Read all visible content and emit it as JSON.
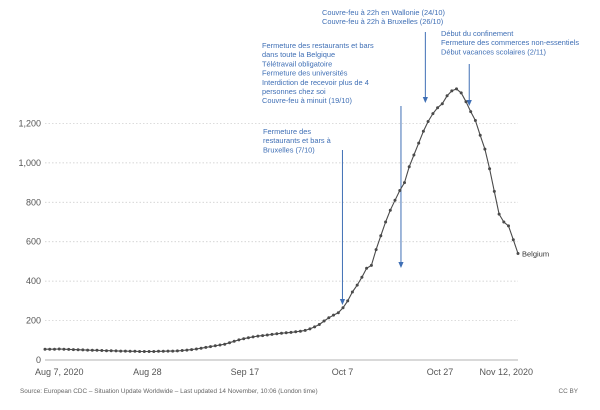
{
  "chart_data": {
    "type": "line",
    "series": [
      {
        "name": "Belgium",
        "color": "#4a4a4a",
        "start_date": "2020-08-07",
        "end_date": "2020-11-12",
        "values": [
          55,
          55,
          55,
          56,
          55,
          54,
          53,
          52,
          51,
          50,
          49,
          49,
          48,
          47,
          47,
          46,
          45,
          45,
          44,
          44,
          43,
          43,
          43,
          43,
          44,
          44,
          45,
          45,
          46,
          48,
          50,
          53,
          56,
          60,
          64,
          68,
          72,
          76,
          80,
          88,
          95,
          102,
          108,
          113,
          117,
          121,
          124,
          127,
          130,
          133,
          136,
          138,
          140,
          143,
          146,
          150,
          158,
          168,
          180,
          198,
          214,
          228,
          240,
          265,
          300,
          345,
          380,
          420,
          465,
          480,
          560,
          630,
          700,
          760,
          810,
          860,
          900,
          980,
          1040,
          1100,
          1160,
          1210,
          1250,
          1280,
          1300,
          1340,
          1365,
          1375,
          1355,
          1310,
          1260,
          1215,
          1140,
          1070,
          970,
          855,
          740,
          700,
          680,
          610,
          540
        ]
      }
    ],
    "x_tick_labels": [
      "Aug 7, 2020",
      "Aug 28",
      "Sep 17",
      "Oct 7",
      "Oct 27",
      "Nov 12, 2020"
    ],
    "x_tick_dates": [
      "2020-08-07",
      "2020-08-28",
      "2020-09-17",
      "2020-10-07",
      "2020-10-27",
      "2020-11-12"
    ],
    "y_ticks": [
      0,
      200,
      400,
      600,
      800,
      1000,
      1200
    ],
    "y_tick_labels": [
      "0",
      "200",
      "400",
      "600",
      "800",
      "1,000",
      "1,200"
    ],
    "ylim": [
      0,
      1400
    ],
    "grid": "horizontal dotted",
    "annotations": [
      {
        "id": "ann-oct7",
        "date": "2020-10-07",
        "lines": [
          "Fermeture des",
          "restaurants et bars à",
          "Bruxelles (7/10)"
        ]
      },
      {
        "id": "ann-oct19",
        "date": "2020-10-19",
        "lines": [
          "Fermeture des restaurants et bars",
          "dans toute la Belgique",
          "Télétravail obligatoire",
          "Fermeture des universités",
          "Interdiction de recevoir plus de 4",
          "personnes chez soi",
          "Couvre-feu à minuit (19/10)"
        ]
      },
      {
        "id": "ann-oct24",
        "date": "2020-10-24",
        "lines": [
          "Couvre-feu à 22h en Wallonie (24/10)",
          "Couvre-feu à 22h à Bruxelles (26/10)"
        ]
      },
      {
        "id": "ann-nov2",
        "date": "2020-11-02",
        "lines": [
          "Début du confinement",
          "Fermeture des commerces non-essentiels",
          "Début vacances scolaires (2/11)"
        ]
      }
    ],
    "annotation_color": "#3f6fb5",
    "source": "Source: European CDC – Situation Update Worldwide – Last updated 14 November, 10:06 (London time)",
    "license": "CC BY"
  }
}
